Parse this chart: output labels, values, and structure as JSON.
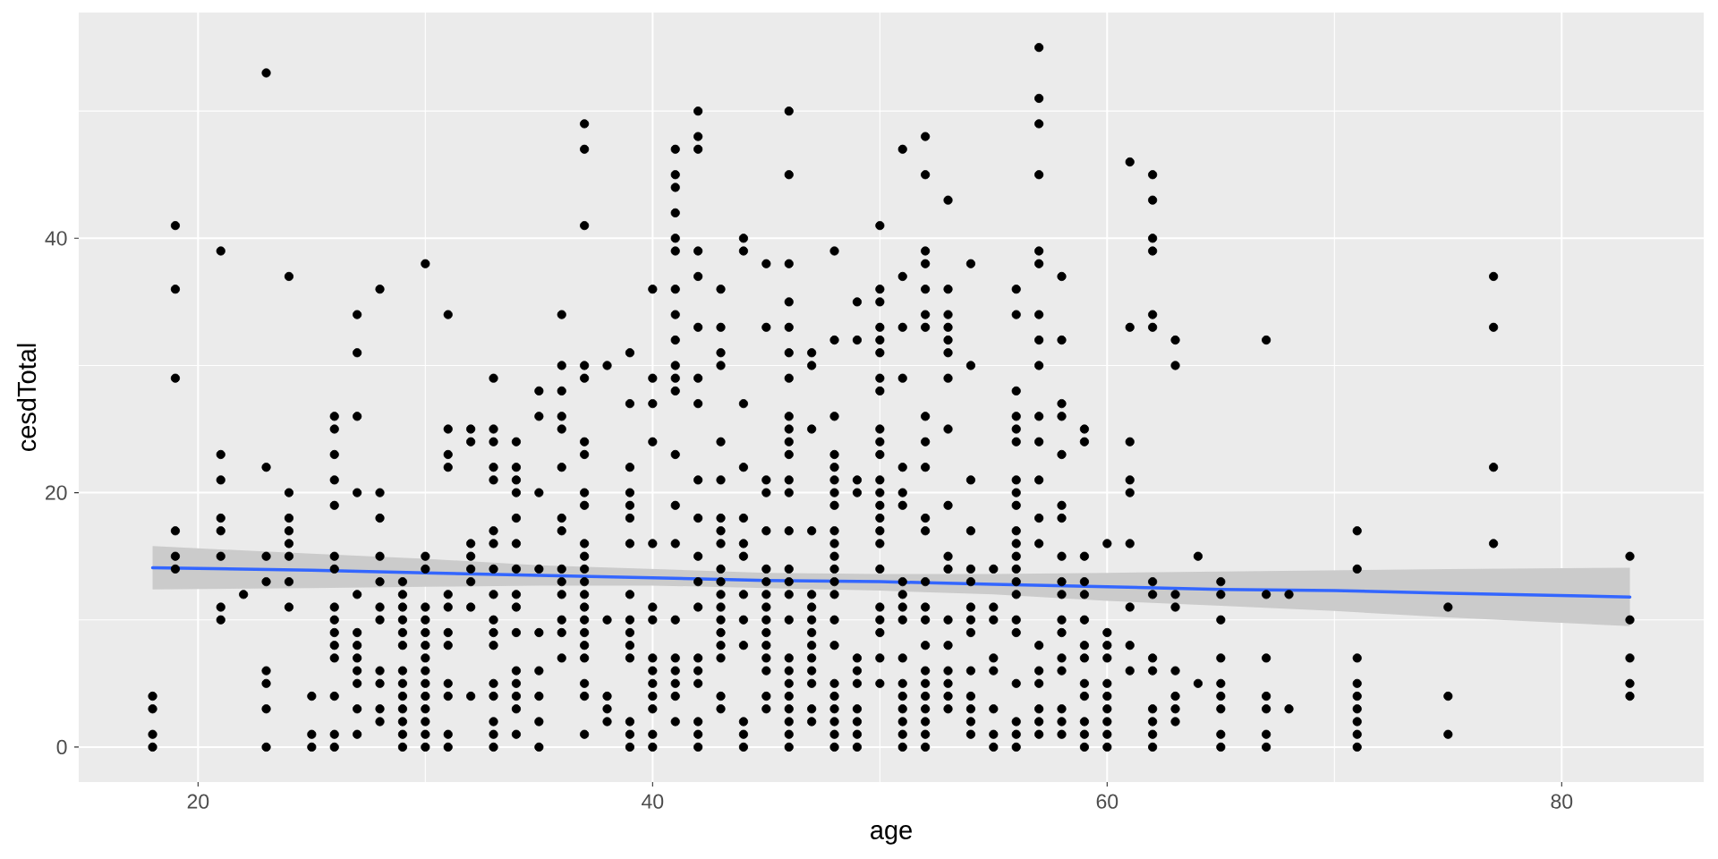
{
  "chart_data": {
    "type": "scatter",
    "xlabel": "age",
    "ylabel": "cesdTotal",
    "xlim": [
      14.75,
      86.25
    ],
    "ylim": [
      -2.75,
      57.75
    ],
    "xticks": [
      20,
      {
        "value": 30,
        "label": null
      },
      40,
      {
        "value": 50,
        "label": null
      },
      60,
      {
        "value": 70,
        "label": null
      },
      80
    ],
    "yticks": [
      0,
      {
        "value": 10,
        "label": null
      },
      20,
      {
        "value": 30,
        "label": null
      },
      40,
      {
        "value": 50,
        "label": null
      }
    ],
    "grid": true,
    "series": [
      {
        "color": "#000000",
        "marker": "circle",
        "x": [
          18,
          18,
          18,
          18,
          19,
          19,
          19,
          19,
          19,
          19,
          21,
          21,
          21,
          21,
          21,
          21,
          21,
          21,
          22,
          23,
          23,
          23,
          23,
          23,
          23,
          23,
          23,
          24,
          24,
          24,
          24,
          24,
          24,
          24,
          24,
          25,
          25,
          25,
          26,
          26,
          26,
          26,
          26,
          26,
          26,
          26,
          26,
          26,
          26,
          26,
          26,
          26,
          26,
          27,
          27,
          27,
          27,
          27,
          27,
          27,
          27,
          27,
          27,
          27,
          27,
          28,
          28,
          28,
          28,
          28,
          28,
          28,
          28,
          28,
          28,
          28,
          29,
          29,
          29,
          29,
          29,
          29,
          29,
          29,
          29,
          29,
          29,
          29,
          29,
          30,
          30,
          30,
          30,
          30,
          30,
          30,
          30,
          30,
          30,
          30,
          30,
          30,
          30,
          30,
          31,
          31,
          31,
          31,
          31,
          31,
          31,
          31,
          31,
          31,
          31,
          31,
          32,
          32,
          32,
          32,
          32,
          32,
          32,
          32,
          33,
          33,
          33,
          33,
          33,
          33,
          33,
          33,
          33,
          33,
          33,
          33,
          33,
          33,
          33,
          33,
          33,
          34,
          34,
          34,
          34,
          34,
          34,
          34,
          34,
          34,
          34,
          34,
          34,
          34,
          34,
          34,
          35,
          35,
          35,
          35,
          35,
          35,
          35,
          35,
          35,
          36,
          36,
          36,
          36,
          36,
          36,
          36,
          36,
          36,
          36,
          36,
          36,
          36,
          36,
          37,
          37,
          37,
          37,
          37,
          37,
          37,
          37,
          37,
          37,
          37,
          37,
          37,
          37,
          37,
          37,
          37,
          37,
          37,
          37,
          37,
          37,
          38,
          38,
          38,
          38,
          38,
          39,
          39,
          39,
          39,
          39,
          39,
          39,
          39,
          39,
          39,
          39,
          39,
          39,
          39,
          39,
          40,
          40,
          40,
          40,
          40,
          40,
          40,
          40,
          40,
          40,
          40,
          40,
          40,
          40,
          41,
          41,
          41,
          41,
          41,
          41,
          41,
          41,
          41,
          41,
          41,
          41,
          41,
          41,
          41,
          41,
          41,
          41,
          41,
          41,
          41,
          42,
          42,
          42,
          42,
          42,
          42,
          42,
          42,
          42,
          42,
          42,
          42,
          42,
          42,
          42,
          42,
          42,
          42,
          42,
          43,
          43,
          43,
          43,
          43,
          43,
          43,
          43,
          43,
          43,
          43,
          43,
          43,
          43,
          43,
          43,
          43,
          43,
          43,
          44,
          44,
          44,
          44,
          44,
          44,
          44,
          44,
          44,
          44,
          44,
          44,
          44,
          45,
          45,
          45,
          45,
          45,
          45,
          45,
          45,
          45,
          45,
          45,
          45,
          45,
          45,
          45,
          45,
          46,
          46,
          46,
          46,
          46,
          46,
          46,
          46,
          46,
          46,
          46,
          46,
          46,
          46,
          46,
          46,
          46,
          46,
          46,
          46,
          46,
          46,
          46,
          46,
          46,
          46,
          47,
          47,
          47,
          47,
          47,
          47,
          47,
          47,
          47,
          47,
          47,
          47,
          47,
          47,
          48,
          48,
          48,
          48,
          48,
          48,
          48,
          48,
          48,
          48,
          48,
          48,
          48,
          48,
          48,
          48,
          48,
          48,
          48,
          48,
          48,
          48,
          49,
          49,
          49,
          49,
          49,
          49,
          49,
          49,
          49,
          49,
          49,
          50,
          50,
          50,
          50,
          50,
          50,
          50,
          50,
          50,
          50,
          50,
          50,
          50,
          50,
          50,
          50,
          50,
          50,
          50,
          50,
          50,
          50,
          50,
          51,
          51,
          51,
          51,
          51,
          51,
          51,
          51,
          51,
          51,
          51,
          51,
          51,
          51,
          51,
          51,
          51,
          51,
          52,
          52,
          52,
          52,
          52,
          52,
          52,
          52,
          52,
          52,
          52,
          52,
          52,
          52,
          52,
          52,
          52,
          52,
          52,
          52,
          52,
          52,
          52,
          53,
          53,
          53,
          53,
          53,
          53,
          53,
          53,
          53,
          53,
          53,
          53,
          53,
          53,
          53,
          53,
          53,
          54,
          54,
          54,
          54,
          54,
          54,
          54,
          54,
          54,
          54,
          54,
          54,
          54,
          54,
          55,
          55,
          55,
          55,
          55,
          55,
          55,
          55,
          56,
          56,
          56,
          56,
          56,
          56,
          56,
          56,
          56,
          56,
          56,
          56,
          56,
          56,
          56,
          56,
          56,
          56,
          56,
          56,
          56,
          57,
          57,
          57,
          57,
          57,
          57,
          57,
          57,
          57,
          57,
          57,
          57,
          57,
          57,
          57,
          57,
          57,
          57,
          57,
          57,
          58,
          58,
          58,
          58,
          58,
          58,
          58,
          58,
          58,
          58,
          58,
          58,
          58,
          58,
          58,
          58,
          58,
          59,
          59,
          59,
          59,
          59,
          59,
          59,
          59,
          59,
          59,
          59,
          59,
          59,
          60,
          60,
          60,
          60,
          60,
          60,
          60,
          60,
          60,
          60,
          61,
          61,
          61,
          61,
          61,
          61,
          61,
          61,
          61,
          62,
          62,
          62,
          62,
          62,
          62,
          62,
          62,
          62,
          62,
          62,
          62,
          62,
          62,
          63,
          63,
          63,
          63,
          63,
          63,
          63,
          63,
          64,
          64,
          65,
          65,
          65,
          65,
          65,
          65,
          65,
          65,
          65,
          67,
          67,
          67,
          67,
          67,
          67,
          67,
          68,
          68,
          71,
          71,
          71,
          71,
          71,
          71,
          71,
          71,
          71,
          75,
          75,
          75,
          77,
          77,
          77,
          77,
          83,
          83,
          83,
          83,
          83
        ],
        "values": [
          0,
          1,
          3,
          4,
          14,
          15,
          17,
          29,
          36,
          41,
          10,
          11,
          15,
          17,
          18,
          21,
          23,
          39,
          12,
          0,
          3,
          5,
          6,
          13,
          15,
          22,
          53,
          11,
          13,
          15,
          16,
          17,
          18,
          20,
          37,
          0,
          1,
          4,
          0,
          1,
          4,
          7,
          8,
          9,
          10,
          11,
          14,
          15,
          19,
          21,
          23,
          25,
          26,
          1,
          3,
          5,
          6,
          7,
          8,
          9,
          12,
          20,
          26,
          31,
          34,
          2,
          3,
          5,
          6,
          10,
          11,
          13,
          15,
          18,
          20,
          36,
          0,
          1,
          2,
          3,
          4,
          5,
          6,
          8,
          9,
          10,
          11,
          12,
          13,
          0,
          1,
          2,
          3,
          4,
          5,
          6,
          7,
          8,
          9,
          10,
          11,
          14,
          15,
          38,
          0,
          1,
          4,
          5,
          8,
          9,
          11,
          12,
          22,
          23,
          25,
          34,
          4,
          11,
          13,
          14,
          15,
          16,
          24,
          25,
          0,
          1,
          2,
          4,
          5,
          8,
          9,
          10,
          12,
          14,
          16,
          17,
          21,
          22,
          24,
          25,
          29,
          1,
          3,
          4,
          5,
          6,
          9,
          11,
          12,
          14,
          16,
          18,
          20,
          21,
          22,
          24,
          0,
          2,
          4,
          6,
          9,
          14,
          20,
          26,
          28,
          7,
          9,
          10,
          12,
          13,
          14,
          17,
          18,
          22,
          25,
          26,
          28,
          30,
          34,
          1,
          4,
          5,
          7,
          8,
          9,
          10,
          11,
          12,
          13,
          14,
          15,
          16,
          19,
          20,
          23,
          24,
          29,
          30,
          41,
          47,
          49,
          2,
          3,
          4,
          10,
          30,
          0,
          1,
          2,
          7,
          8,
          9,
          10,
          12,
          16,
          18,
          19,
          20,
          22,
          27,
          31,
          0,
          1,
          3,
          4,
          5,
          6,
          7,
          10,
          11,
          16,
          24,
          27,
          29,
          36,
          2,
          4,
          5,
          6,
          7,
          10,
          16,
          19,
          23,
          28,
          29,
          30,
          32,
          34,
          36,
          39,
          40,
          42,
          44,
          45,
          47,
          0,
          1,
          2,
          5,
          6,
          7,
          11,
          13,
          15,
          18,
          21,
          27,
          29,
          33,
          37,
          39,
          47,
          48,
          50,
          3,
          4,
          7,
          8,
          9,
          10,
          11,
          12,
          13,
          14,
          16,
          17,
          18,
          21,
          24,
          30,
          31,
          33,
          36,
          0,
          1,
          2,
          8,
          10,
          12,
          15,
          16,
          18,
          22,
          27,
          39,
          40,
          3,
          4,
          6,
          7,
          8,
          9,
          10,
          11,
          12,
          13,
          14,
          17,
          20,
          21,
          33,
          38,
          0,
          1,
          2,
          3,
          4,
          5,
          6,
          7,
          10,
          12,
          13,
          14,
          17,
          20,
          21,
          23,
          24,
          25,
          26,
          29,
          31,
          33,
          35,
          38,
          45,
          50,
          2,
          3,
          5,
          6,
          7,
          8,
          9,
          10,
          11,
          12,
          17,
          25,
          30,
          31,
          0,
          1,
          2,
          3,
          4,
          5,
          8,
          10,
          12,
          13,
          14,
          15,
          16,
          17,
          19,
          20,
          21,
          22,
          23,
          26,
          32,
          39,
          0,
          1,
          2,
          3,
          5,
          6,
          7,
          20,
          21,
          32,
          35,
          5,
          7,
          9,
          10,
          11,
          14,
          16,
          17,
          18,
          19,
          20,
          21,
          23,
          24,
          25,
          28,
          29,
          31,
          32,
          33,
          35,
          36,
          41,
          0,
          1,
          2,
          3,
          4,
          5,
          7,
          10,
          11,
          12,
          13,
          19,
          20,
          22,
          29,
          33,
          37,
          47,
          0,
          1,
          2,
          3,
          4,
          5,
          6,
          8,
          10,
          11,
          13,
          17,
          18,
          22,
          24,
          26,
          33,
          34,
          36,
          38,
          39,
          45,
          48,
          3,
          4,
          5,
          6,
          8,
          10,
          14,
          15,
          19,
          25,
          29,
          31,
          32,
          33,
          34,
          36,
          43,
          1,
          2,
          3,
          4,
          6,
          9,
          10,
          11,
          13,
          14,
          17,
          21,
          30,
          38,
          0,
          1,
          3,
          6,
          7,
          10,
          11,
          14,
          0,
          1,
          2,
          5,
          9,
          10,
          12,
          13,
          14,
          15,
          16,
          17,
          19,
          20,
          21,
          24,
          25,
          26,
          28,
          34,
          36,
          1,
          2,
          3,
          5,
          6,
          8,
          16,
          18,
          21,
          24,
          26,
          30,
          32,
          34,
          38,
          39,
          45,
          49,
          51,
          55,
          1,
          2,
          3,
          6,
          7,
          9,
          10,
          12,
          13,
          15,
          18,
          19,
          23,
          26,
          27,
          32,
          37,
          0,
          1,
          2,
          4,
          5,
          7,
          8,
          10,
          12,
          13,
          15,
          24,
          25,
          0,
          1,
          2,
          3,
          4,
          5,
          7,
          8,
          9,
          16,
          6,
          8,
          11,
          16,
          20,
          21,
          24,
          33,
          46,
          0,
          1,
          2,
          3,
          6,
          7,
          12,
          13,
          33,
          34,
          39,
          40,
          43,
          45,
          2,
          3,
          4,
          6,
          11,
          12,
          30,
          32,
          5,
          15,
          0,
          1,
          3,
          4,
          5,
          7,
          10,
          12,
          13,
          0,
          1,
          3,
          4,
          7,
          12,
          32,
          3,
          12,
          0,
          1,
          2,
          3,
          4,
          5,
          7,
          14,
          17,
          1,
          4,
          11,
          16,
          22,
          33,
          37,
          4,
          5,
          7,
          10,
          15
        ]
      },
      {
        "type": "line",
        "color": "#3366FF",
        "line_style": "solid",
        "x": [
          18,
          25,
          30,
          35,
          40,
          45,
          50,
          55,
          60,
          65,
          70,
          75,
          83
        ],
        "values": [
          14.1,
          13.9,
          13.7,
          13.5,
          13.3,
          13.1,
          13.0,
          12.8,
          12.6,
          12.4,
          12.3,
          12.1,
          11.8
        ],
        "lower": [
          12.4,
          12.5,
          12.6,
          12.7,
          12.7,
          12.5,
          12.3,
          12.0,
          11.5,
          11.1,
          10.7,
          10.2,
          9.5
        ],
        "upper": [
          15.8,
          15.2,
          14.8,
          14.3,
          14.0,
          13.7,
          13.6,
          13.6,
          13.7,
          13.8,
          13.9,
          14.0,
          14.1
        ]
      }
    ]
  }
}
